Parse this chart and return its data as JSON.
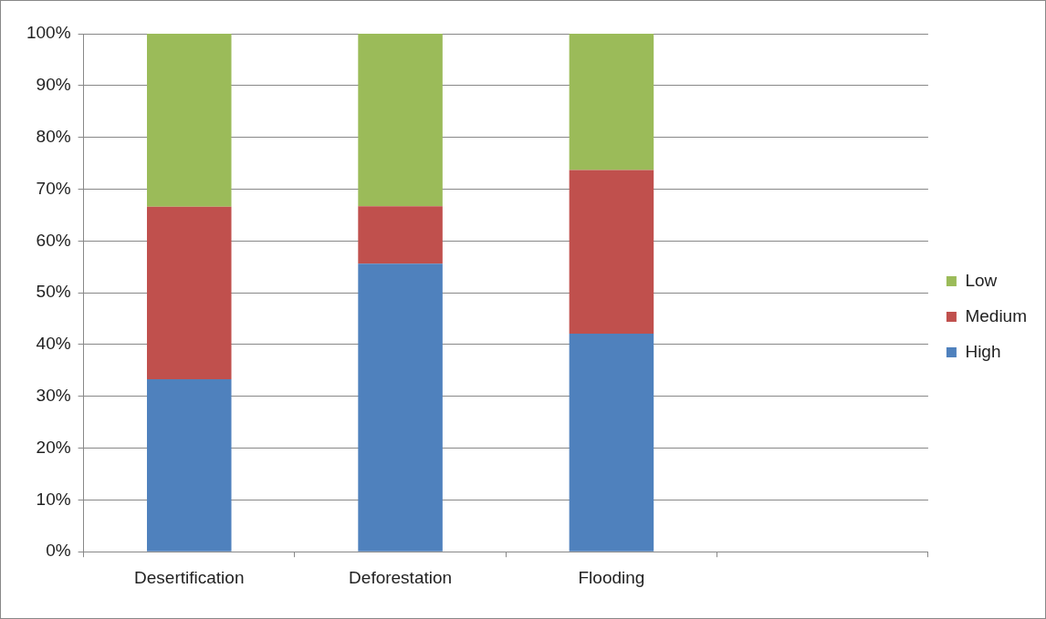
{
  "chart_data": {
    "type": "bar",
    "stacked": true,
    "categories": [
      "Desertification",
      "Deforestation",
      "Flooding",
      null
    ],
    "series": [
      {
        "name": "High",
        "color": "#4f81bd",
        "values": [
          33.3,
          55.6,
          42.1,
          null
        ]
      },
      {
        "name": "Medium",
        "color": "#c0504d",
        "values": [
          33.3,
          11.1,
          31.6,
          null
        ]
      },
      {
        "name": "Low",
        "color": "#9bbb59",
        "values": [
          33.4,
          33.3,
          26.3,
          null
        ]
      }
    ],
    "ylim": [
      0,
      100
    ],
    "yticks": [
      {
        "value": 0,
        "label": "0%"
      },
      {
        "value": 10,
        "label": "10%"
      },
      {
        "value": 20,
        "label": "20%"
      },
      {
        "value": 30,
        "label": "30%"
      },
      {
        "value": 40,
        "label": "40%"
      },
      {
        "value": 50,
        "label": "50%"
      },
      {
        "value": 60,
        "label": "60%"
      },
      {
        "value": 70,
        "label": "70%"
      },
      {
        "value": 80,
        "label": "80%"
      },
      {
        "value": 90,
        "label": "90%"
      },
      {
        "value": 100,
        "label": "100%"
      }
    ],
    "grid": "y",
    "legend": "right"
  }
}
